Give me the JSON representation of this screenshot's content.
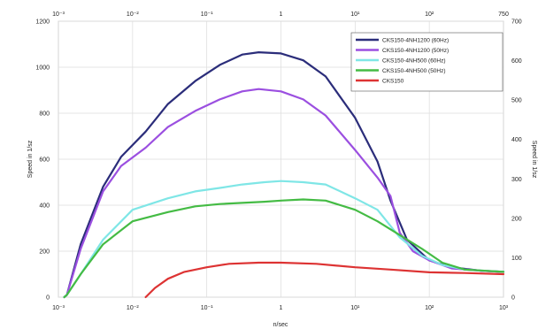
{
  "chart_data": {
    "type": "line",
    "title": "",
    "xlabel": "n/sec",
    "ylabel": "Speed in 1/sz",
    "y2label": "Speed in 1/sz",
    "x_scale": "log",
    "xlim": [
      0.001,
      1000
    ],
    "ylim": [
      0,
      1200
    ],
    "y2lim": [
      0,
      700
    ],
    "grid": true,
    "legend_position": "top-right",
    "x_ticks_bottom": [
      "10⁻³",
      "10⁻²",
      "10⁻¹",
      "1",
      "10¹",
      "10²",
      "10³"
    ],
    "x_ticks_top": [
      "10⁻³",
      "10⁻²",
      "10⁻¹",
      "1",
      "10¹",
      "10²",
      "750"
    ],
    "y_ticks_left": [
      "0",
      "200",
      "400",
      "600",
      "800",
      "1000",
      "1200"
    ],
    "y_ticks_right": [
      "0",
      "100",
      "200",
      "300",
      "400",
      "500",
      "600",
      "700"
    ],
    "series": [
      {
        "name": "CKS150-4NH1200 (60Hz)",
        "color": "#2b2d7a",
        "points": [
          [
            0.0012,
            0
          ],
          [
            0.0013,
            10
          ],
          [
            0.002,
            230
          ],
          [
            0.004,
            480
          ],
          [
            0.007,
            610
          ],
          [
            0.015,
            720
          ],
          [
            0.03,
            840
          ],
          [
            0.07,
            940
          ],
          [
            0.15,
            1010
          ],
          [
            0.3,
            1055
          ],
          [
            0.5,
            1065
          ],
          [
            1,
            1060
          ],
          [
            2,
            1030
          ],
          [
            4,
            960
          ],
          [
            10,
            780
          ],
          [
            20,
            590
          ],
          [
            30,
            420
          ],
          [
            50,
            250
          ],
          [
            100,
            160
          ],
          [
            200,
            130
          ],
          [
            500,
            115
          ],
          [
            1000,
            110
          ]
        ]
      },
      {
        "name": "CKS150-4NH1200 (50Hz)",
        "color": "#9b4fe0",
        "points": [
          [
            0.0012,
            0
          ],
          [
            0.0013,
            10
          ],
          [
            0.002,
            210
          ],
          [
            0.004,
            460
          ],
          [
            0.007,
            570
          ],
          [
            0.015,
            650
          ],
          [
            0.03,
            740
          ],
          [
            0.07,
            810
          ],
          [
            0.15,
            860
          ],
          [
            0.3,
            895
          ],
          [
            0.5,
            905
          ],
          [
            1,
            895
          ],
          [
            2,
            860
          ],
          [
            4,
            790
          ],
          [
            10,
            640
          ],
          [
            20,
            520
          ],
          [
            30,
            440
          ],
          [
            40,
            280
          ],
          [
            60,
            200
          ],
          [
            100,
            160
          ],
          [
            200,
            125
          ],
          [
            500,
            115
          ],
          [
            1000,
            110
          ]
        ]
      },
      {
        "name": "CKS150-4NH500 (60Hz)",
        "color": "#7fe6e6",
        "points": [
          [
            0.0012,
            0
          ],
          [
            0.0013,
            10
          ],
          [
            0.002,
            100
          ],
          [
            0.004,
            250
          ],
          [
            0.01,
            380
          ],
          [
            0.03,
            430
          ],
          [
            0.07,
            460
          ],
          [
            0.15,
            475
          ],
          [
            0.3,
            490
          ],
          [
            0.6,
            500
          ],
          [
            1,
            505
          ],
          [
            2,
            500
          ],
          [
            4,
            490
          ],
          [
            10,
            430
          ],
          [
            20,
            380
          ],
          [
            40,
            260
          ],
          [
            80,
            180
          ],
          [
            150,
            140
          ],
          [
            300,
            120
          ],
          [
            1000,
            110
          ]
        ]
      },
      {
        "name": "CKS150-4NH500 (50Hz)",
        "color": "#44bb44",
        "points": [
          [
            0.0012,
            0
          ],
          [
            0.0013,
            10
          ],
          [
            0.002,
            100
          ],
          [
            0.004,
            230
          ],
          [
            0.01,
            330
          ],
          [
            0.03,
            370
          ],
          [
            0.07,
            395
          ],
          [
            0.15,
            405
          ],
          [
            0.3,
            410
          ],
          [
            0.6,
            415
          ],
          [
            1,
            420
          ],
          [
            2,
            425
          ],
          [
            4,
            420
          ],
          [
            10,
            380
          ],
          [
            20,
            330
          ],
          [
            40,
            270
          ],
          [
            80,
            210
          ],
          [
            150,
            150
          ],
          [
            300,
            120
          ],
          [
            1000,
            110
          ]
        ]
      },
      {
        "name": "CKS150",
        "color": "#dd3333",
        "points": [
          [
            0.015,
            0
          ],
          [
            0.02,
            40
          ],
          [
            0.03,
            80
          ],
          [
            0.05,
            110
          ],
          [
            0.1,
            130
          ],
          [
            0.2,
            145
          ],
          [
            0.5,
            150
          ],
          [
            1,
            150
          ],
          [
            3,
            145
          ],
          [
            10,
            130
          ],
          [
            30,
            120
          ],
          [
            100,
            108
          ],
          [
            300,
            105
          ],
          [
            1000,
            100
          ]
        ]
      }
    ]
  }
}
